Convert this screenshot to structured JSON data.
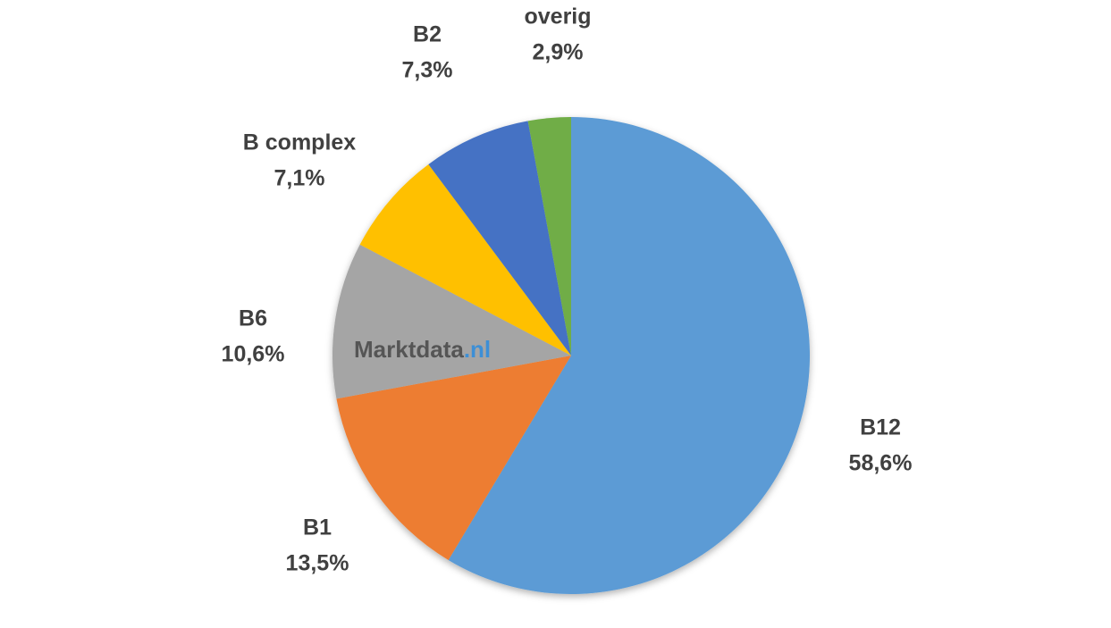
{
  "chart_data": {
    "type": "pie",
    "categories": [
      "B12",
      "B1",
      "B6",
      "B complex",
      "B2",
      "overig"
    ],
    "values": [
      58.6,
      13.5,
      10.6,
      7.1,
      7.3,
      2.9
    ],
    "value_labels": [
      "58,6%",
      "13,5%",
      "10,6%",
      "7,1%",
      "7,3%",
      "2,9%"
    ],
    "colors": [
      "#5b9bd5",
      "#ed7d31",
      "#a5a5a5",
      "#ffc000",
      "#4472c4",
      "#70ad47"
    ],
    "watermark": "Marktdata",
    "watermark_domain": ".nl"
  }
}
